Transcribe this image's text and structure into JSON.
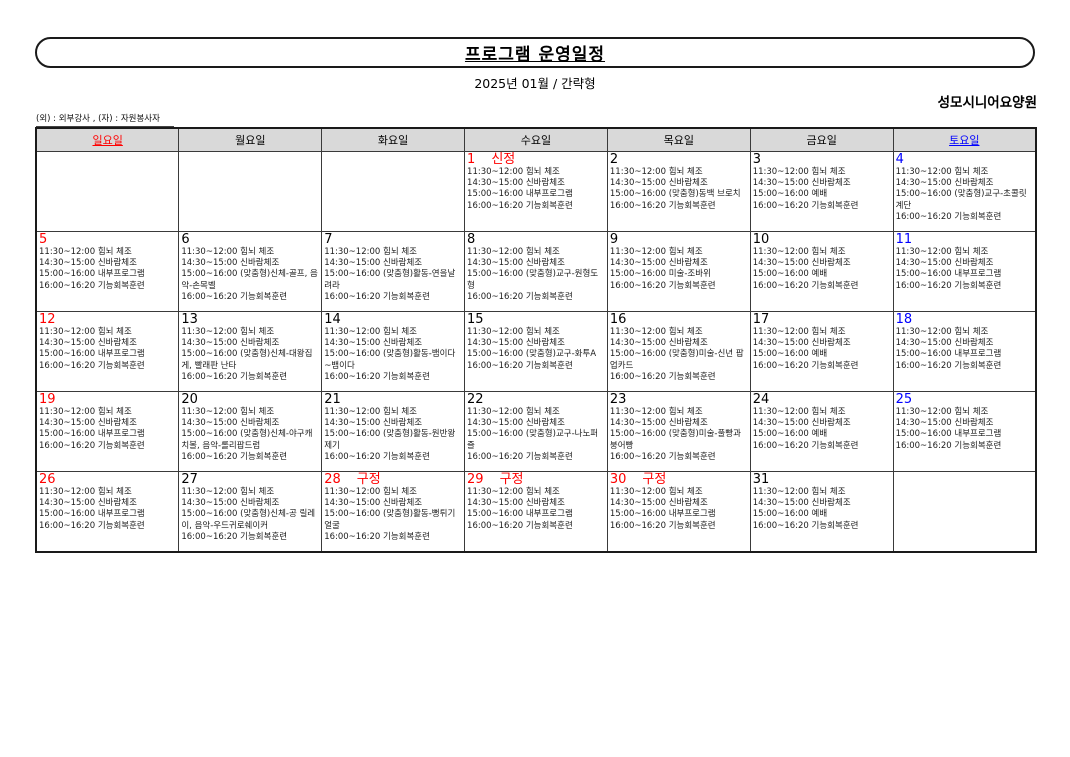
{
  "header": {
    "title": "프로그램 운영일정",
    "subtitle": "2025년 01월 / 간략형",
    "facility": "성모시니어요양원",
    "legend": "(외) :  외부강사 , (자) :  자원봉사자"
  },
  "colors": {
    "sunday": "#ff0000",
    "saturday": "#0000ff",
    "holiday": "#ff0000",
    "header_bg": "#d9d9d9"
  },
  "calendar": {
    "weekdays": [
      {
        "label": "일요일",
        "color": "red"
      },
      {
        "label": "월요일",
        "color": "black"
      },
      {
        "label": "화요일",
        "color": "black"
      },
      {
        "label": "수요일",
        "color": "black"
      },
      {
        "label": "목요일",
        "color": "black"
      },
      {
        "label": "금요일",
        "color": "black"
      },
      {
        "label": "토요일",
        "color": "blue"
      }
    ],
    "weeks": [
      [
        {
          "day": "",
          "color": "black",
          "holiday": "",
          "lines": []
        },
        {
          "day": "",
          "color": "black",
          "holiday": "",
          "lines": []
        },
        {
          "day": "",
          "color": "black",
          "holiday": "",
          "lines": []
        },
        {
          "day": "1",
          "color": "red",
          "holiday": "신정",
          "lines": [
            "11:30~12:00 힘뇌 체조",
            "14:30~15:00 신바람체조",
            "15:00~16:00 내부프로그램",
            "16:00~16:20 기능회복훈련"
          ]
        },
        {
          "day": "2",
          "color": "black",
          "holiday": "",
          "lines": [
            "11:30~12:00 힘뇌 체조",
            "14:30~15:00 신바람체조",
            "15:00~16:00 (맞춤형)동백 브로치",
            "16:00~16:20 기능회복훈련"
          ]
        },
        {
          "day": "3",
          "color": "black",
          "holiday": "",
          "lines": [
            "11:30~12:00 힘뇌 체조",
            "14:30~15:00 신바람체조",
            "15:00~16:00 예배",
            "16:00~16:20 기능회복훈련"
          ]
        },
        {
          "day": "4",
          "color": "blue",
          "holiday": "",
          "lines": [
            "11:30~12:00 힘뇌 체조",
            "14:30~15:00 신바람체조",
            "15:00~16:00 (맞춤형)교구-초콜릿계단",
            "16:00~16:20 기능회복훈련"
          ]
        }
      ],
      [
        {
          "day": "5",
          "color": "red",
          "holiday": "",
          "lines": [
            "11:30~12:00 힘뇌 체조",
            "14:30~15:00 신바람체조",
            "15:00~16:00 내부프로그램",
            "16:00~16:20 기능회복훈련"
          ]
        },
        {
          "day": "6",
          "color": "black",
          "holiday": "",
          "lines": [
            "11:30~12:00 힘뇌 체조",
            "14:30~15:00 신바람체조",
            "15:00~16:00 (맞춤형)신체-골프, 음악-손목벨",
            "16:00~16:20 기능회복훈련"
          ]
        },
        {
          "day": "7",
          "color": "black",
          "holiday": "",
          "lines": [
            "11:30~12:00 힘뇌 체조",
            "14:30~15:00 신바람체조",
            "15:00~16:00 (맞춤형)활동-연을날려라",
            "16:00~16:20 기능회복훈련"
          ]
        },
        {
          "day": "8",
          "color": "black",
          "holiday": "",
          "lines": [
            "11:30~12:00 힘뇌 체조",
            "14:30~15:00 신바람체조",
            "15:00~16:00 (맞춤형)교구-원형도형",
            "16:00~16:20 기능회복훈련"
          ]
        },
        {
          "day": "9",
          "color": "black",
          "holiday": "",
          "lines": [
            "11:30~12:00 힘뇌 체조",
            "14:30~15:00 신바람체조",
            "15:00~16:00 미술-조바위",
            "16:00~16:20 기능회복훈련"
          ]
        },
        {
          "day": "10",
          "color": "black",
          "holiday": "",
          "lines": [
            "11:30~12:00 힘뇌 체조",
            "14:30~15:00 신바람체조",
            "15:00~16:00 예배",
            "16:00~16:20 기능회복훈련"
          ]
        },
        {
          "day": "11",
          "color": "blue",
          "holiday": "",
          "lines": [
            "11:30~12:00 힘뇌 체조",
            "14:30~15:00 신바람체조",
            "15:00~16:00 내부프로그램",
            "16:00~16:20 기능회복훈련"
          ]
        }
      ],
      [
        {
          "day": "12",
          "color": "red",
          "holiday": "",
          "lines": [
            "11:30~12:00 힘뇌 체조",
            "14:30~15:00 신바람체조",
            "15:00~16:00 내부프로그램",
            "16:00~16:20 기능회복훈련"
          ]
        },
        {
          "day": "13",
          "color": "black",
          "holiday": "",
          "lines": [
            "11:30~12:00 힘뇌 체조",
            "14:30~15:00 신바람체조",
            "15:00~16:00 (맞춤형)신체-대왕집게, 빨래판 난타",
            "16:00~16:20 기능회복훈련"
          ]
        },
        {
          "day": "14",
          "color": "black",
          "holiday": "",
          "lines": [
            "11:30~12:00 힘뇌 체조",
            "14:30~15:00 신바람체조",
            "15:00~16:00 (맞춤형)활동-뱀이다~뱀이다",
            "16:00~16:20 기능회복훈련"
          ]
        },
        {
          "day": "15",
          "color": "black",
          "holiday": "",
          "lines": [
            "11:30~12:00 힘뇌 체조",
            "14:30~15:00 신바람체조",
            "15:00~16:00 (맞춤형)교구-화투A",
            "16:00~16:20 기능회복훈련"
          ]
        },
        {
          "day": "16",
          "color": "black",
          "holiday": "",
          "lines": [
            "11:30~12:00 힘뇌 체조",
            "14:30~15:00 신바람체조",
            "15:00~16:00 (맞춤형)미술-신년 팝업카드",
            "16:00~16:20 기능회복훈련"
          ]
        },
        {
          "day": "17",
          "color": "black",
          "holiday": "",
          "lines": [
            "11:30~12:00 힘뇌 체조",
            "14:30~15:00 신바람체조",
            "15:00~16:00 예배",
            "16:00~16:20 기능회복훈련"
          ]
        },
        {
          "day": "18",
          "color": "blue",
          "holiday": "",
          "lines": [
            "11:30~12:00 힘뇌 체조",
            "14:30~15:00 신바람체조",
            "15:00~16:00 내부프로그램",
            "16:00~16:20 기능회복훈련"
          ]
        }
      ],
      [
        {
          "day": "19",
          "color": "red",
          "holiday": "",
          "lines": [
            "11:30~12:00 힘뇌 체조",
            "14:30~15:00 신바람체조",
            "15:00~16:00 내부프로그램",
            "16:00~16:20 기능회복훈련"
          ]
        },
        {
          "day": "20",
          "color": "black",
          "holiday": "",
          "lines": [
            "11:30~12:00 힘뇌 체조",
            "14:30~15:00 신바람체조",
            "15:00~16:00 (맞춤형)신체-야구캐치볼, 음악-롤리팝드럼",
            "16:00~16:20 기능회복훈련"
          ]
        },
        {
          "day": "21",
          "color": "black",
          "holiday": "",
          "lines": [
            "11:30~12:00 힘뇌 체조",
            "14:30~15:00 신바람체조",
            "15:00~16:00 (맞춤형)활동-원반왕제기",
            "16:00~16:20 기능회복훈련"
          ]
        },
        {
          "day": "22",
          "color": "black",
          "holiday": "",
          "lines": [
            "11:30~12:00 힘뇌 체조",
            "14:30~15:00 신바람체조",
            "15:00~16:00 (맞춤형)교구-나노퍼즐",
            "16:00~16:20 기능회복훈련"
          ]
        },
        {
          "day": "23",
          "color": "black",
          "holiday": "",
          "lines": [
            "11:30~12:00 힘뇌 체조",
            "14:30~15:00 신바람체조",
            "15:00~16:00 (맞춤형)미술-풀빵과 붕어빵",
            "16:00~16:20 기능회복훈련"
          ]
        },
        {
          "day": "24",
          "color": "black",
          "holiday": "",
          "lines": [
            "11:30~12:00 힘뇌 체조",
            "14:30~15:00 신바람체조",
            "15:00~16:00 예배",
            "16:00~16:20 기능회복훈련"
          ]
        },
        {
          "day": "25",
          "color": "blue",
          "holiday": "",
          "lines": [
            "11:30~12:00 힘뇌 체조",
            "14:30~15:00 신바람체조",
            "15:00~16:00 내부프로그램",
            "16:00~16:20 기능회복훈련"
          ]
        }
      ],
      [
        {
          "day": "26",
          "color": "red",
          "holiday": "",
          "lines": [
            "11:30~12:00 힘뇌 체조",
            "14:30~15:00 신바람체조",
            "15:00~16:00 내부프로그램",
            "16:00~16:20 기능회복훈련"
          ]
        },
        {
          "day": "27",
          "color": "black",
          "holiday": "",
          "lines": [
            "11:30~12:00 힘뇌 체조",
            "14:30~15:00 신바람체조",
            "15:00~16:00 (맞춤형)신체-공 릴레이, 음악-우드귀로쉐이커",
            "16:00~16:20 기능회복훈련"
          ]
        },
        {
          "day": "28",
          "color": "red",
          "holiday": "구정",
          "lines": [
            "11:30~12:00 힘뇌 체조",
            "14:30~15:00 신바람체조",
            "15:00~16:00 (맞춤형)활동-뻥튀기얼굴",
            "16:00~16:20 기능회복훈련"
          ]
        },
        {
          "day": "29",
          "color": "red",
          "holiday": "구정",
          "lines": [
            "11:30~12:00 힘뇌 체조",
            "14:30~15:00 신바람체조",
            "15:00~16:00 내부프로그램",
            "16:00~16:20 기능회복훈련"
          ]
        },
        {
          "day": "30",
          "color": "red",
          "holiday": "구정",
          "lines": [
            "11:30~12:00 힘뇌 체조",
            "14:30~15:00 신바람체조",
            "15:00~16:00 내부프로그램",
            "16:00~16:20 기능회복훈련"
          ]
        },
        {
          "day": "31",
          "color": "black",
          "holiday": "",
          "lines": [
            "11:30~12:00 힘뇌 체조",
            "14:30~15:00 신바람체조",
            "15:00~16:00 예배",
            "16:00~16:20 기능회복훈련"
          ]
        },
        {
          "day": "",
          "color": "black",
          "holiday": "",
          "lines": []
        }
      ]
    ]
  }
}
